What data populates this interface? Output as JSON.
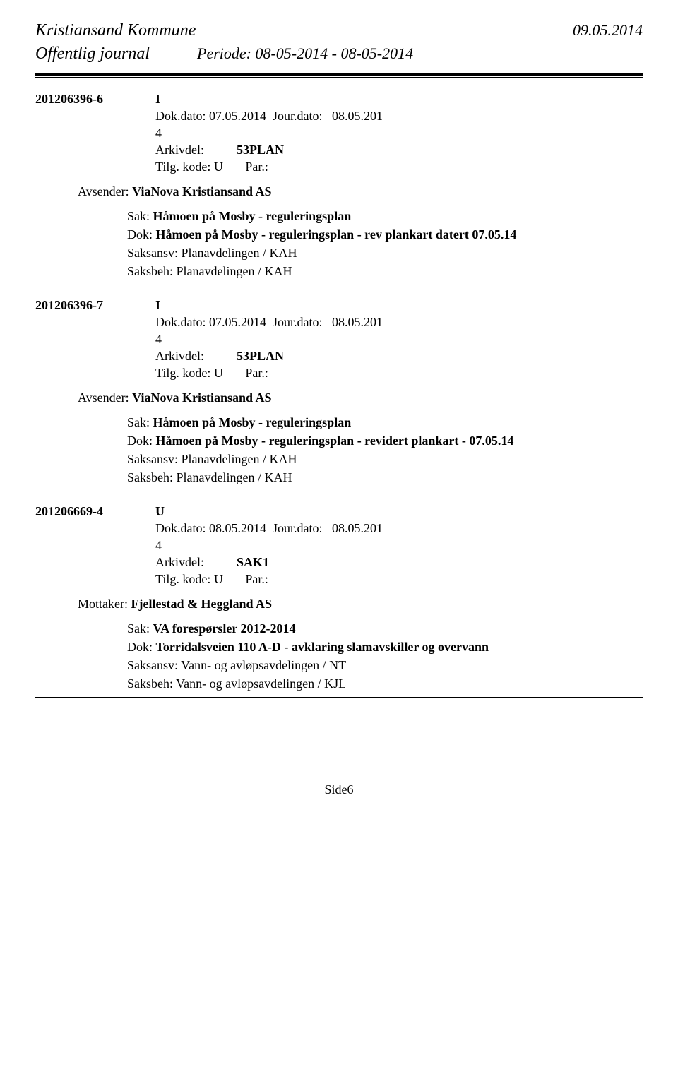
{
  "header": {
    "title": "Kristiansand Kommune",
    "date": "09.05.2014",
    "subtitle": "Offentlig journal",
    "period": "Periode: 08-05-2014 - 08-05-2014"
  },
  "entries": [
    {
      "id": "201206396-6",
      "type": "I",
      "dokDato": "Dok.dato: 07.05.2014",
      "jourDato": "Jour.dato:",
      "jourDatoValue": "08.05.201",
      "jourDatoSuffix": "4",
      "arkivLabel": "Arkivdel:",
      "arkivValue": "53PLAN",
      "tilgKode": "Tilg. kode: U",
      "par": "Par.:",
      "partyLabel": "Avsender: ",
      "partyValue": "ViaNova Kristiansand AS",
      "sakLabel": "Sak: ",
      "sakValue": "Håmoen på Mosby - reguleringsplan",
      "dokLabel": "Dok: ",
      "dokValue": "Håmoen på Mosby - reguleringsplan - rev plankart datert 07.05.14",
      "saksansv": "Saksansv:  Planavdelingen / KAH",
      "saksbeh": "Saksbeh:    Planavdelingen / KAH"
    },
    {
      "id": "201206396-7",
      "type": "I",
      "dokDato": "Dok.dato: 07.05.2014",
      "jourDato": "Jour.dato:",
      "jourDatoValue": "08.05.201",
      "jourDatoSuffix": "4",
      "arkivLabel": "Arkivdel:",
      "arkivValue": "53PLAN",
      "tilgKode": "Tilg. kode: U",
      "par": "Par.:",
      "partyLabel": "Avsender: ",
      "partyValue": "ViaNova Kristiansand AS",
      "sakLabel": "Sak: ",
      "sakValue": "Håmoen på Mosby - reguleringsplan",
      "dokLabel": "Dok: ",
      "dokValue": "Håmoen på Mosby - reguleringsplan - revidert plankart -   07.05.14",
      "saksansv": "Saksansv:  Planavdelingen / KAH",
      "saksbeh": "Saksbeh:    Planavdelingen / KAH"
    },
    {
      "id": "201206669-4",
      "type": "U",
      "dokDato": "Dok.dato: 08.05.2014",
      "jourDato": "Jour.dato:",
      "jourDatoValue": "08.05.201",
      "jourDatoSuffix": "4",
      "arkivLabel": "Arkivdel:",
      "arkivValue": "SAK1",
      "tilgKode": "Tilg. kode: U",
      "par": "Par.:",
      "partyLabel": "Mottaker: ",
      "partyValue": "Fjellestad & Heggland AS",
      "sakLabel": "Sak: ",
      "sakValue": "VA forespørsler 2012-2014",
      "dokLabel": "Dok: ",
      "dokValue": "Torridalsveien 110 A-D - avklaring slamavskiller og overvann",
      "saksansv": "Saksansv:  Vann- og avløpsavdelingen / NT",
      "saksbeh": "Saksbeh:    Vann- og avløpsavdelingen / KJL"
    }
  ],
  "footer": {
    "pageNumber": "Side6"
  }
}
